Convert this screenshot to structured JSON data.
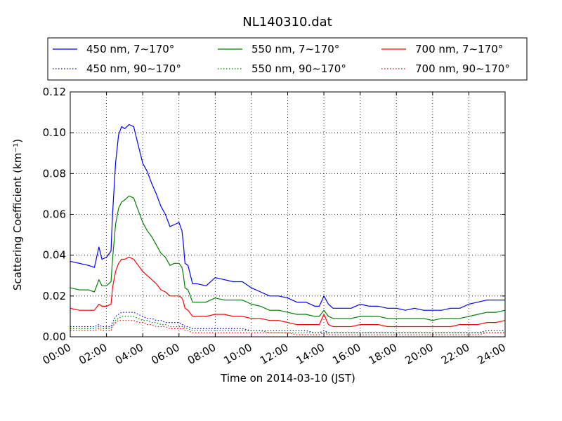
{
  "chart_data": {
    "type": "line",
    "title": "NL140310.dat",
    "xlabel": "Time on 2014-03-10 (JST)",
    "ylabel": "Scattering Coefficient (km⁻¹)",
    "xlim": [
      "00:00",
      "24:00"
    ],
    "ylim": [
      0.0,
      0.12
    ],
    "x_ticks": [
      "00:00",
      "02:00",
      "04:00",
      "06:00",
      "08:00",
      "10:00",
      "12:00",
      "14:00",
      "16:00",
      "18:00",
      "20:00",
      "22:00",
      "24:00"
    ],
    "y_ticks": [
      "0.00",
      "0.02",
      "0.04",
      "0.06",
      "0.08",
      "0.10",
      "0.12"
    ],
    "grid": true,
    "legend_position": "top",
    "x": [
      "00:00",
      "00:30",
      "01:00",
      "01:20",
      "01:35",
      "01:45",
      "02:00",
      "02:15",
      "02:20",
      "02:30",
      "02:40",
      "02:50",
      "03:00",
      "03:15",
      "03:30",
      "03:45",
      "04:00",
      "04:15",
      "04:30",
      "04:45",
      "05:00",
      "05:15",
      "05:30",
      "05:45",
      "06:00",
      "06:10",
      "06:15",
      "06:20",
      "06:30",
      "06:45",
      "07:00",
      "07:30",
      "08:00",
      "08:30",
      "09:00",
      "09:30",
      "10:00",
      "10:30",
      "11:00",
      "11:30",
      "12:00",
      "12:30",
      "13:00",
      "13:30",
      "13:45",
      "14:00",
      "14:15",
      "14:30",
      "15:00",
      "15:30",
      "16:00",
      "16:30",
      "17:00",
      "17:30",
      "18:00",
      "18:30",
      "19:00",
      "19:30",
      "20:00",
      "20:30",
      "21:00",
      "21:30",
      "22:00",
      "22:30",
      "23:00",
      "23:30",
      "24:00"
    ],
    "series": [
      {
        "name": "450 nm, 7∼170°",
        "color": "#0000ff",
        "style": "solid",
        "values": [
          0.037,
          0.036,
          0.035,
          0.034,
          0.044,
          0.038,
          0.039,
          0.042,
          0.06,
          0.085,
          0.099,
          0.103,
          0.102,
          0.104,
          0.103,
          0.094,
          0.085,
          0.081,
          0.075,
          0.07,
          0.064,
          0.06,
          0.054,
          0.055,
          0.056,
          0.052,
          0.045,
          0.036,
          0.035,
          0.026,
          0.026,
          0.025,
          0.029,
          0.028,
          0.027,
          0.027,
          0.024,
          0.022,
          0.02,
          0.02,
          0.019,
          0.017,
          0.017,
          0.015,
          0.015,
          0.02,
          0.016,
          0.014,
          0.014,
          0.014,
          0.016,
          0.015,
          0.015,
          0.014,
          0.014,
          0.013,
          0.014,
          0.013,
          0.013,
          0.013,
          0.014,
          0.014,
          0.016,
          0.017,
          0.018,
          0.018,
          0.018
        ]
      },
      {
        "name": "550 nm, 7∼170°",
        "color": "#008000",
        "style": "solid",
        "values": [
          0.024,
          0.023,
          0.023,
          0.022,
          0.028,
          0.025,
          0.025,
          0.027,
          0.038,
          0.055,
          0.063,
          0.066,
          0.067,
          0.069,
          0.068,
          0.062,
          0.056,
          0.052,
          0.049,
          0.045,
          0.041,
          0.039,
          0.035,
          0.036,
          0.036,
          0.034,
          0.03,
          0.024,
          0.023,
          0.017,
          0.017,
          0.017,
          0.019,
          0.018,
          0.018,
          0.018,
          0.016,
          0.015,
          0.013,
          0.013,
          0.012,
          0.011,
          0.011,
          0.01,
          0.01,
          0.013,
          0.01,
          0.009,
          0.009,
          0.009,
          0.01,
          0.01,
          0.01,
          0.009,
          0.009,
          0.009,
          0.009,
          0.009,
          0.008,
          0.009,
          0.009,
          0.009,
          0.01,
          0.011,
          0.012,
          0.012,
          0.013
        ]
      },
      {
        "name": "700 nm, 7∼170°",
        "color": "#ff0000",
        "style": "solid",
        "values": [
          0.014,
          0.013,
          0.013,
          0.013,
          0.016,
          0.015,
          0.015,
          0.016,
          0.024,
          0.032,
          0.036,
          0.038,
          0.038,
          0.039,
          0.038,
          0.035,
          0.032,
          0.03,
          0.028,
          0.026,
          0.023,
          0.022,
          0.02,
          0.02,
          0.02,
          0.019,
          0.017,
          0.014,
          0.013,
          0.01,
          0.01,
          0.01,
          0.011,
          0.011,
          0.01,
          0.01,
          0.009,
          0.009,
          0.008,
          0.008,
          0.007,
          0.006,
          0.006,
          0.006,
          0.006,
          0.011,
          0.006,
          0.005,
          0.005,
          0.005,
          0.006,
          0.006,
          0.006,
          0.005,
          0.005,
          0.005,
          0.005,
          0.005,
          0.005,
          0.005,
          0.005,
          0.006,
          0.006,
          0.006,
          0.007,
          0.007,
          0.008
        ]
      },
      {
        "name": "450 nm, 90∼170°",
        "color": "#0000ff",
        "style": "dotted",
        "values": [
          0.005,
          0.005,
          0.005,
          0.005,
          0.006,
          0.005,
          0.005,
          0.005,
          0.007,
          0.01,
          0.011,
          0.012,
          0.012,
          0.012,
          0.012,
          0.011,
          0.01,
          0.009,
          0.009,
          0.008,
          0.008,
          0.007,
          0.007,
          0.007,
          0.007,
          0.006,
          0.006,
          0.005,
          0.005,
          0.004,
          0.004,
          0.004,
          0.004,
          0.004,
          0.004,
          0.004,
          0.003,
          0.003,
          0.003,
          0.003,
          0.003,
          0.003,
          0.003,
          0.002,
          0.002,
          0.003,
          0.002,
          0.002,
          0.002,
          0.002,
          0.002,
          0.002,
          0.002,
          0.002,
          0.002,
          0.002,
          0.002,
          0.002,
          0.002,
          0.002,
          0.002,
          0.002,
          0.002,
          0.002,
          0.003,
          0.003,
          0.003
        ]
      },
      {
        "name": "550 nm, 90∼170°",
        "color": "#008000",
        "style": "dotted",
        "values": [
          0.004,
          0.004,
          0.004,
          0.004,
          0.005,
          0.004,
          0.004,
          0.004,
          0.006,
          0.008,
          0.009,
          0.01,
          0.01,
          0.01,
          0.01,
          0.009,
          0.008,
          0.008,
          0.007,
          0.007,
          0.006,
          0.006,
          0.005,
          0.005,
          0.005,
          0.005,
          0.005,
          0.004,
          0.004,
          0.003,
          0.003,
          0.003,
          0.003,
          0.003,
          0.003,
          0.003,
          0.003,
          0.003,
          0.002,
          0.002,
          0.002,
          0.002,
          0.002,
          0.002,
          0.002,
          0.002,
          0.002,
          0.002,
          0.002,
          0.002,
          0.002,
          0.002,
          0.002,
          0.002,
          0.002,
          0.002,
          0.002,
          0.002,
          0.002,
          0.002,
          0.002,
          0.002,
          0.002,
          0.002,
          0.002,
          0.002,
          0.002
        ]
      },
      {
        "name": "700 nm, 90∼170°",
        "color": "#ff0000",
        "style": "dotted",
        "values": [
          0.003,
          0.003,
          0.003,
          0.003,
          0.004,
          0.003,
          0.003,
          0.003,
          0.005,
          0.007,
          0.008,
          0.008,
          0.008,
          0.008,
          0.008,
          0.007,
          0.007,
          0.006,
          0.006,
          0.005,
          0.005,
          0.005,
          0.004,
          0.004,
          0.004,
          0.004,
          0.004,
          0.003,
          0.003,
          0.002,
          0.002,
          0.002,
          0.002,
          0.002,
          0.002,
          0.002,
          0.002,
          0.002,
          0.002,
          0.002,
          0.002,
          0.001,
          0.001,
          0.001,
          0.001,
          0.002,
          0.001,
          0.001,
          0.001,
          0.001,
          0.001,
          0.001,
          0.001,
          0.001,
          0.001,
          0.001,
          0.001,
          0.001,
          0.001,
          0.001,
          0.001,
          0.001,
          0.001,
          0.001,
          0.002,
          0.002,
          0.002
        ]
      }
    ]
  }
}
